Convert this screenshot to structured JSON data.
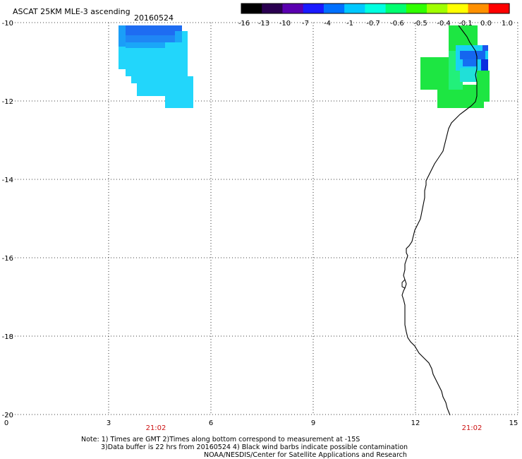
{
  "header": {
    "title": "ASCAT 25KM MLE-3 ascending",
    "date": "20160524"
  },
  "colorbar": {
    "labels": [
      "-16",
      "-13",
      "-10",
      "-7",
      "-4",
      "-1",
      "-0.7",
      "-0.6",
      "-0.5",
      "-0.4",
      "-0.1",
      "0.0",
      "1.0"
    ],
    "colors": [
      "#000000",
      "#2a0050",
      "#5a00b0",
      "#1a1aff",
      "#0070ff",
      "#00c8ff",
      "#00ffe0",
      "#00ff70",
      "#30ff00",
      "#a0ff00",
      "#ffff00",
      "#ff9000",
      "#ff0000"
    ]
  },
  "axes": {
    "lat_labels": [
      "-10",
      "-12",
      "-14",
      "-16",
      "-18",
      "-20"
    ],
    "lon_labels": [
      "0",
      "3",
      "6",
      "9",
      "12",
      "15"
    ],
    "pass_times": [
      "21:02",
      "21:02"
    ]
  },
  "footer": {
    "line1": "Note: 1) Times are GMT 2)Times along bottom correspond to measurement at -15S",
    "line2": "3)Data buffer is 22 hrs from 20160524 4) Black wind barbs indicate possible contamination",
    "line3": "NOAA/NESDIS/Center for Satellite Applications and Research"
  }
}
